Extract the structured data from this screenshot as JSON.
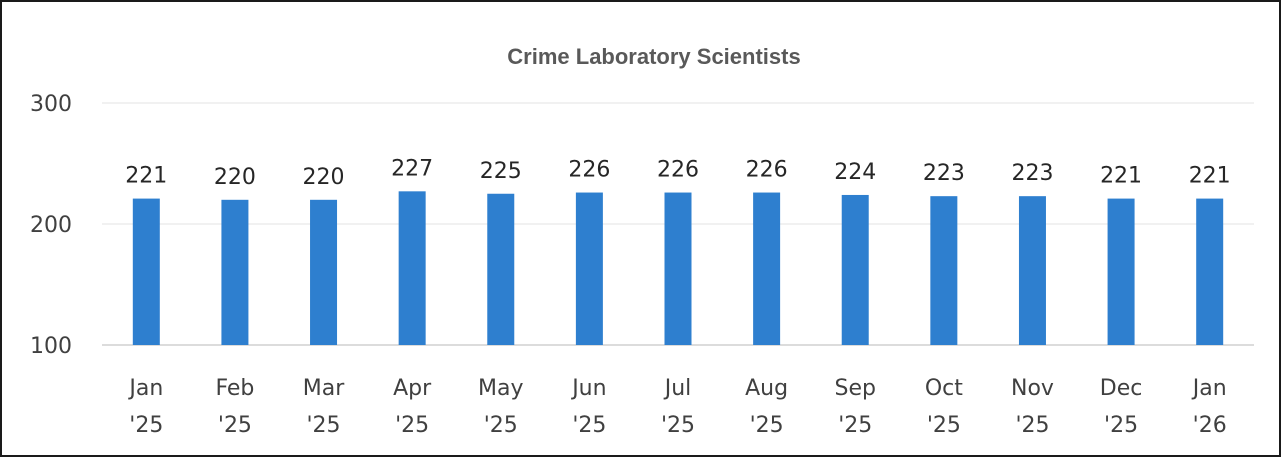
{
  "chart_data": {
    "type": "bar",
    "title": "Crime Laboratory Scientists",
    "categories": [
      [
        "Jan",
        "'25"
      ],
      [
        "Feb",
        "'25"
      ],
      [
        "Mar",
        "'25"
      ],
      [
        "Apr",
        "'25"
      ],
      [
        "May",
        "'25"
      ],
      [
        "Jun",
        "'25"
      ],
      [
        "Jul",
        "'25"
      ],
      [
        "Aug",
        "'25"
      ],
      [
        "Sep",
        "'25"
      ],
      [
        "Oct",
        "'25"
      ],
      [
        "Nov",
        "'25"
      ],
      [
        "Dec",
        "'25"
      ],
      [
        "Jan",
        "'26"
      ]
    ],
    "values": [
      221,
      220,
      220,
      227,
      225,
      226,
      226,
      226,
      224,
      223,
      223,
      221,
      221
    ],
    "ylim": [
      100,
      300
    ],
    "yticks": [
      100,
      200,
      300
    ],
    "grid": true,
    "legend": "none",
    "bar_color": "#2e7fcf"
  }
}
